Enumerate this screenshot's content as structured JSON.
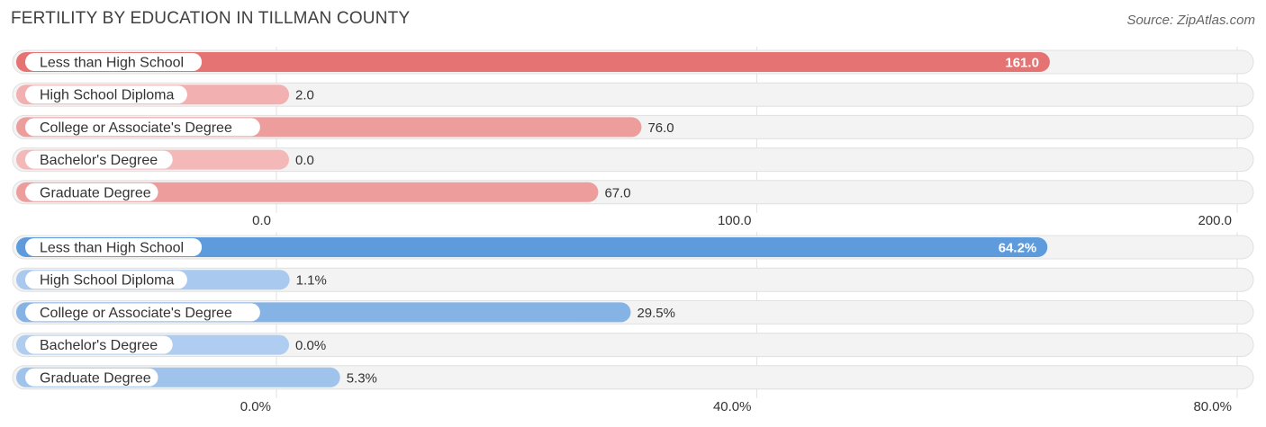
{
  "title": "FERTILITY BY EDUCATION IN TILLMAN COUNTY",
  "source": "Source: ZipAtlas.com",
  "chart_data": [
    {
      "type": "bar",
      "orientation": "horizontal",
      "categories": [
        "Less than High School",
        "High School Diploma",
        "College or Associate's Degree",
        "Bachelor's Degree",
        "Graduate Degree"
      ],
      "values": [
        161.0,
        2.0,
        76.0,
        0.0,
        67.0
      ],
      "value_labels": [
        "161.0",
        "2.0",
        "76.0",
        "0.0",
        "67.0"
      ],
      "xlim": [
        0,
        200
      ],
      "ticks": [
        0,
        100,
        200
      ],
      "tick_labels": [
        "0.0",
        "100.0",
        "200.0"
      ],
      "colors": [
        "#e57373",
        "#f2b0b0",
        "#ee9d9d",
        "#f5b8b8",
        "#ee9d9d"
      ]
    },
    {
      "type": "bar",
      "orientation": "horizontal",
      "categories": [
        "Less than High School",
        "High School Diploma",
        "College or Associate's Degree",
        "Bachelor's Degree",
        "Graduate Degree"
      ],
      "values": [
        64.2,
        1.1,
        29.5,
        0.0,
        5.3
      ],
      "value_labels": [
        "64.2%",
        "1.1%",
        "29.5%",
        "0.0%",
        "5.3%"
      ],
      "xlim": [
        0,
        80
      ],
      "ticks": [
        0,
        40,
        80
      ],
      "tick_labels": [
        "0.0%",
        "40.0%",
        "80.0%"
      ],
      "colors": [
        "#5d9bdc",
        "#a9c9ee",
        "#86b3e6",
        "#aecdf0",
        "#a0c3ec"
      ]
    }
  ]
}
